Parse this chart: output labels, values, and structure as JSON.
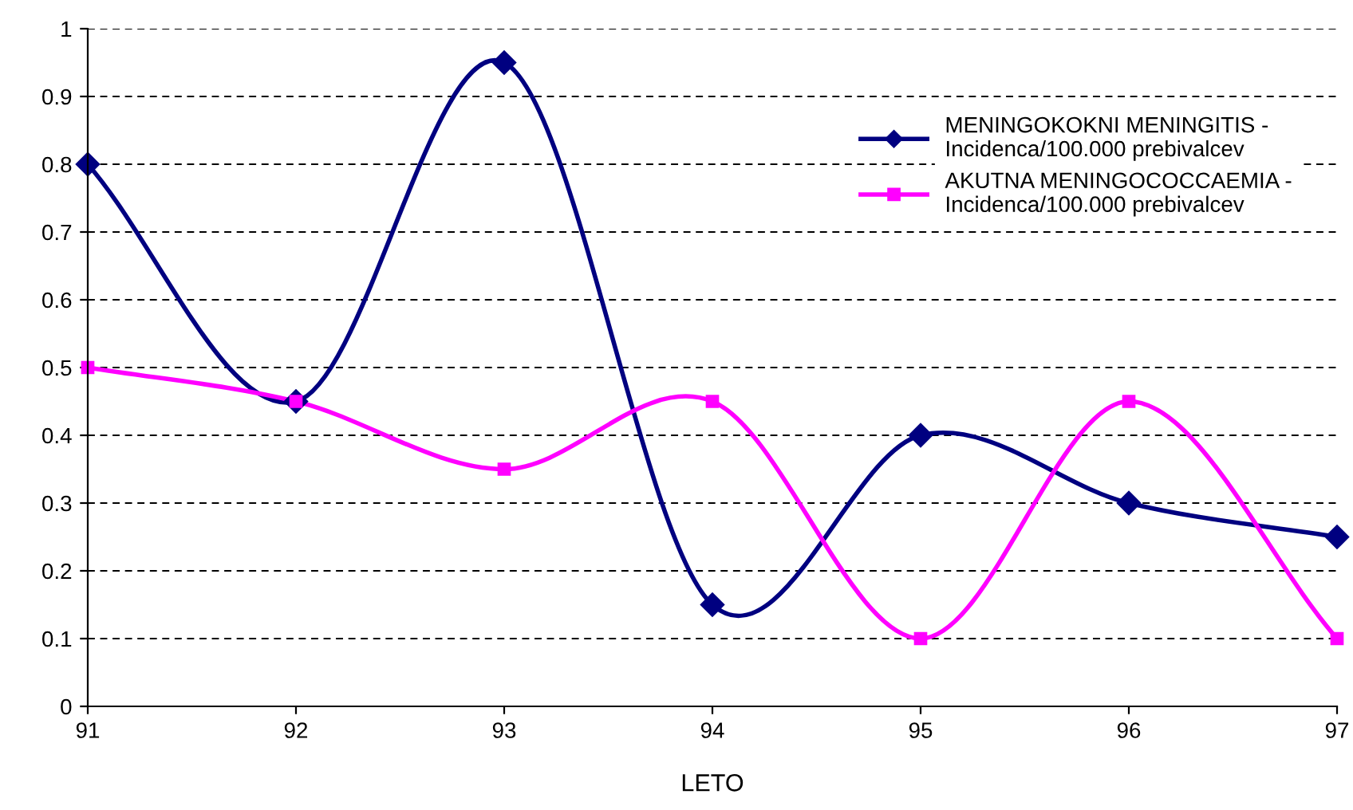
{
  "chart_data": {
    "type": "line",
    "xlabel": "LETO",
    "x": [
      91,
      92,
      93,
      94,
      95,
      96,
      97
    ],
    "series": [
      {
        "name": "MENINGOKOKNI MENINGITIS -\nIncidenca/100.000 prebivalcev",
        "color": "#000080",
        "marker": "diamond",
        "values": [
          0.8,
          0.45,
          0.95,
          0.15,
          0.4,
          0.3,
          0.25
        ]
      },
      {
        "name": "AKUTNA MENINGOCOCCAEMIA -\nIncidenca/100.000 prebivalcev",
        "color": "#ff00ff",
        "marker": "square",
        "values": [
          0.5,
          0.45,
          0.35,
          0.45,
          0.1,
          0.45,
          0.1
        ]
      }
    ],
    "xlim": [
      91,
      97
    ],
    "xticks": [
      91,
      92,
      93,
      94,
      95,
      96,
      97
    ],
    "ylim": [
      0,
      1
    ],
    "yticks": [
      0,
      0.1,
      0.2,
      0.3,
      0.4,
      0.5,
      0.6,
      0.7,
      0.8,
      0.9,
      1
    ],
    "grid": "y",
    "legend": "top right"
  }
}
